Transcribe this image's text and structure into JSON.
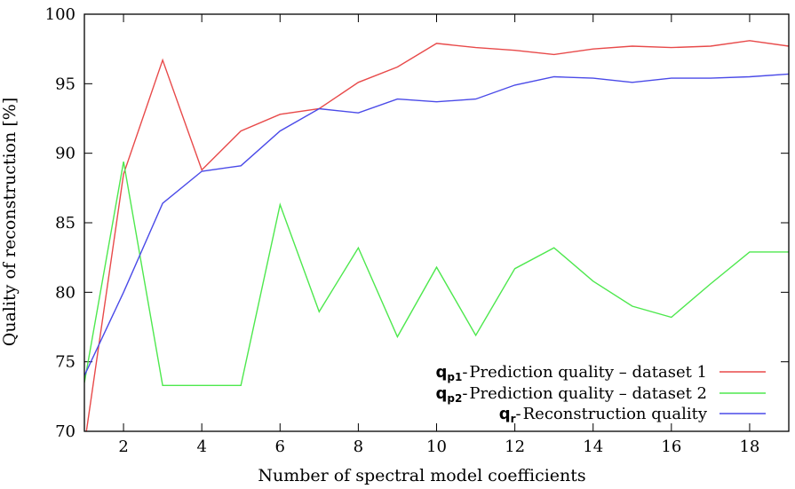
{
  "chart_data": {
    "type": "line",
    "xlabel": "Number of spectral model coefficients",
    "ylabel": "Quality of reconstruction [%]",
    "xlim": [
      1,
      19
    ],
    "ylim": [
      70,
      100
    ],
    "xticks": [
      2,
      4,
      6,
      8,
      10,
      12,
      14,
      16,
      18
    ],
    "yticks": [
      70,
      75,
      80,
      85,
      90,
      95,
      100
    ],
    "grid": false,
    "legend_position": "bottom-right",
    "series": [
      {
        "name": "Prediction quality – dataset 1",
        "symbol": "q",
        "subscript": "p1",
        "color": "#e84a4a",
        "x": [
          1,
          2,
          3,
          4,
          5,
          6,
          7,
          8,
          9,
          10,
          11,
          12,
          13,
          14,
          15,
          16,
          17,
          18,
          19
        ],
        "y": [
          69.0,
          88.5,
          96.7,
          88.8,
          91.6,
          92.8,
          93.2,
          95.1,
          96.2,
          97.9,
          97.6,
          97.4,
          97.1,
          97.5,
          97.7,
          97.6,
          97.7,
          98.1,
          97.7
        ]
      },
      {
        "name": "Prediction quality – dataset 2",
        "symbol": "q",
        "subscript": "p2",
        "color": "#4ee84e",
        "x": [
          1,
          2,
          3,
          4,
          5,
          6,
          7,
          8,
          9,
          10,
          11,
          12,
          13,
          14,
          15,
          16,
          17,
          18,
          19
        ],
        "y": [
          73.5,
          89.4,
          73.3,
          73.3,
          73.3,
          86.3,
          78.6,
          83.2,
          76.8,
          81.8,
          76.9,
          81.7,
          83.2,
          80.8,
          79.0,
          78.2,
          80.6,
          82.9,
          82.9
        ]
      },
      {
        "name": "Reconstruction quality",
        "symbol": "q",
        "subscript": "r",
        "color": "#4a4ae8",
        "x": [
          1,
          2,
          3,
          4,
          5,
          6,
          7,
          8,
          9,
          10,
          11,
          12,
          13,
          14,
          15,
          16,
          17,
          18,
          19
        ],
        "y": [
          74.0,
          80.0,
          86.4,
          88.7,
          89.1,
          91.6,
          93.2,
          92.9,
          93.9,
          93.7,
          93.9,
          94.9,
          95.5,
          95.4,
          95.1,
          95.4,
          95.4,
          95.5,
          95.7
        ]
      }
    ]
  }
}
